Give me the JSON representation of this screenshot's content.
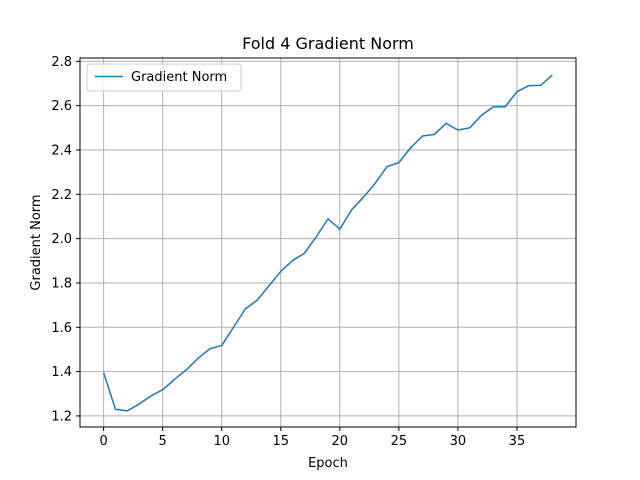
{
  "chart_data": {
    "type": "line",
    "title": "Fold 4 Gradient Norm",
    "xlabel": "Epoch",
    "ylabel": "Gradient Norm",
    "xlim": [
      -2,
      40
    ],
    "ylim": [
      1.15,
      2.815
    ],
    "xticks": [
      0,
      5,
      10,
      15,
      20,
      25,
      30,
      35
    ],
    "yticks": [
      1.2,
      1.4,
      1.6,
      1.8,
      2.0,
      2.2,
      2.4,
      2.6,
      2.8
    ],
    "grid": true,
    "legend_position": "top-left",
    "series": [
      {
        "name": "Gradient Norm",
        "color": "#1f77b4",
        "x": [
          0,
          1,
          2,
          3,
          4,
          5,
          6,
          7,
          8,
          9,
          10,
          11,
          12,
          13,
          14,
          15,
          16,
          17,
          18,
          19,
          20,
          21,
          22,
          23,
          24,
          25,
          26,
          27,
          28,
          29,
          30,
          31,
          32,
          33,
          34,
          35,
          36,
          37,
          38
        ],
        "values": [
          1.395,
          1.23,
          1.223,
          1.253,
          1.29,
          1.318,
          1.365,
          1.408,
          1.46,
          1.503,
          1.518,
          1.6,
          1.683,
          1.722,
          1.787,
          1.852,
          1.901,
          1.934,
          2.008,
          2.089,
          2.043,
          2.13,
          2.187,
          2.25,
          2.325,
          2.343,
          2.41,
          2.463,
          2.47,
          2.52,
          2.49,
          2.5,
          2.556,
          2.595,
          2.595,
          2.663,
          2.69,
          2.692,
          2.738
        ]
      }
    ]
  }
}
